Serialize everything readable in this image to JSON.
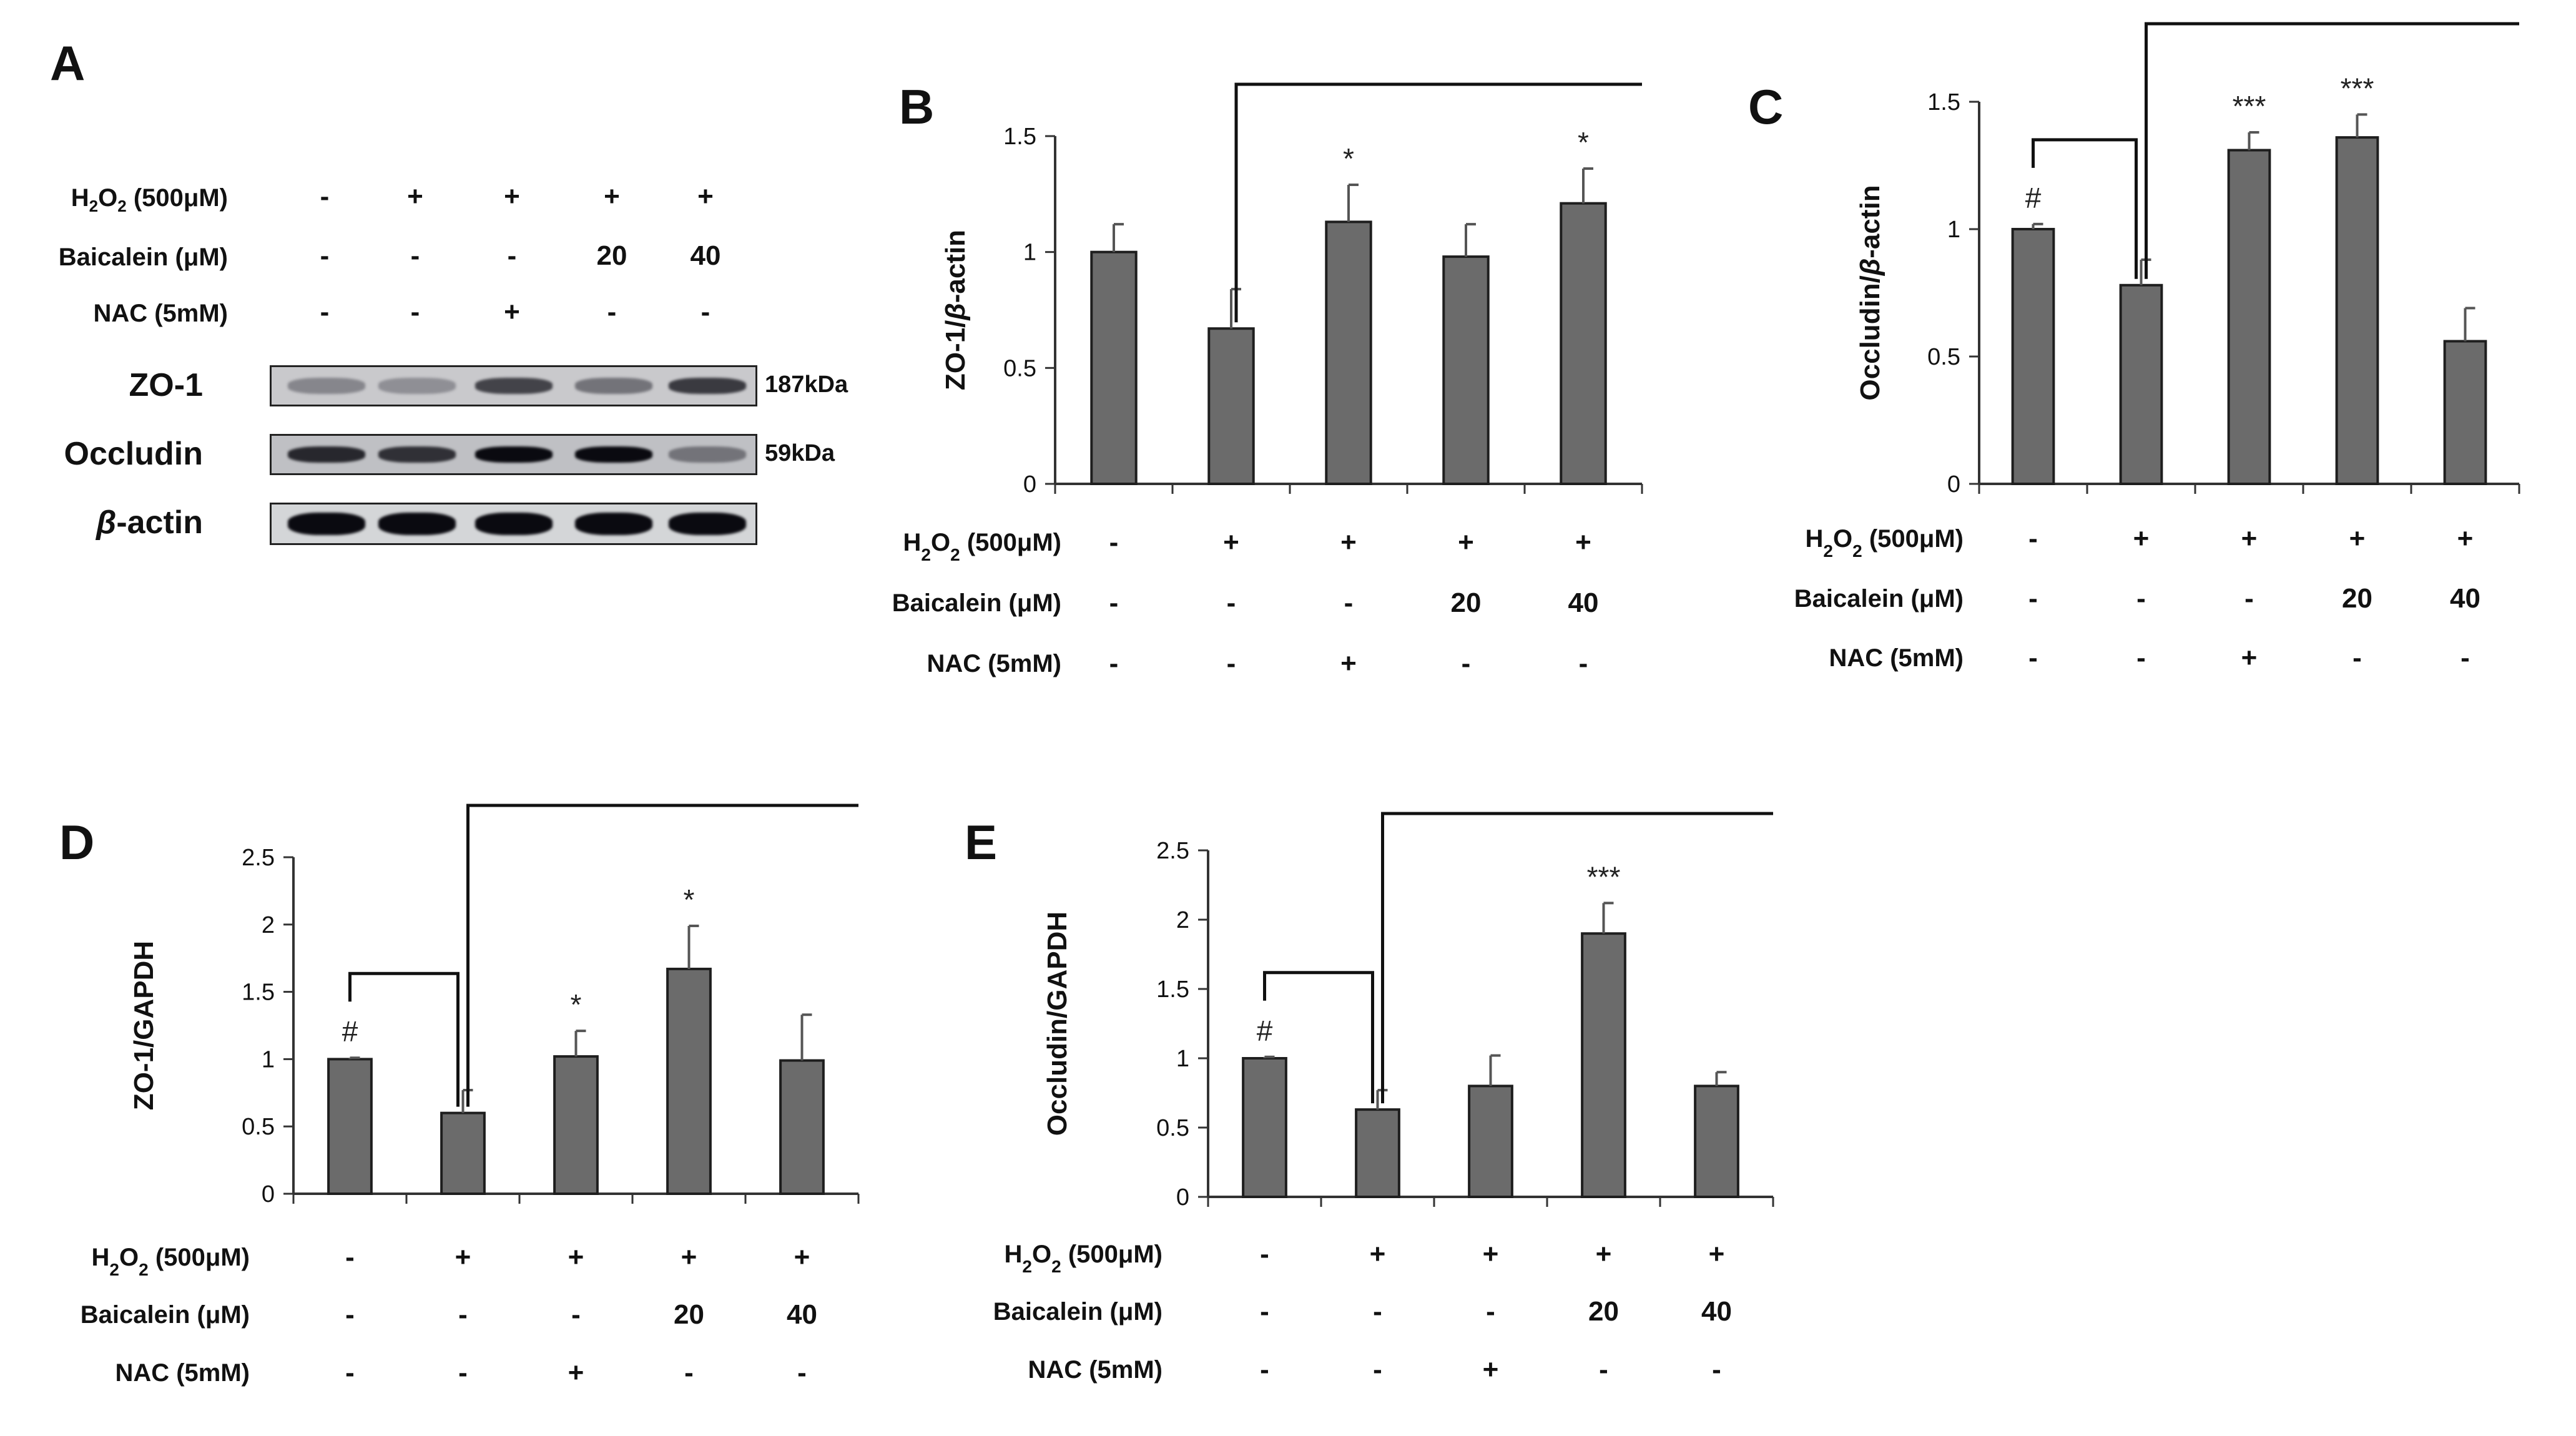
{
  "colors": {
    "bar": "#6b6b6b",
    "axis": "#333333",
    "text": "#111111"
  },
  "panel_a": {
    "label": "A",
    "treatment_rows": [
      {
        "label_html": "H<sub>2</sub>O<sub>2</sub> (500μM)",
        "values": [
          "-",
          "+",
          "+",
          "+",
          "+"
        ]
      },
      {
        "label_html": "Baicalein (μM)",
        "values": [
          "-",
          "-",
          "-",
          "20",
          "40"
        ]
      },
      {
        "label_html": "NAC (5mM)",
        "values": [
          "-",
          "-",
          "+",
          "-",
          "-"
        ]
      }
    ],
    "blots": [
      {
        "name": "ZO-1",
        "beta": false,
        "kda": "187kDa"
      },
      {
        "name": "Occludin",
        "beta": false,
        "kda": "59kDa"
      },
      {
        "name": "-actin",
        "beta": true,
        "kda": ""
      }
    ]
  },
  "chart_data": [
    {
      "panel": "B",
      "type": "bar",
      "title": "",
      "ylabel_html": "ZO-1/<tspan font-style=\"italic\">β</tspan>-actin",
      "ylim": [
        0,
        1.5
      ],
      "yticks": [
        0,
        0.5,
        1,
        1.5
      ],
      "ytick_labels": [
        "0",
        "0.5",
        "1",
        "1.5"
      ],
      "values": [
        1.0,
        0.67,
        1.13,
        0.98,
        1.21
      ],
      "errors": [
        0.12,
        0.17,
        0.16,
        0.14,
        0.15
      ],
      "annotations": [
        "",
        "",
        "*",
        "",
        "*"
      ],
      "bracket_pairs": [
        [
          1,
          4
        ]
      ],
      "treatment_rows": [
        {
          "label_html": "H<tspan baseline-shift=\"sub\" font-size=\"70%\">2</tspan>O<tspan baseline-shift=\"sub\" font-size=\"70%\">2</tspan> (500μM)",
          "values": [
            "-",
            "+",
            "+",
            "+",
            "+"
          ]
        },
        {
          "label_html": "Baicalein (μM)",
          "values": [
            "-",
            "-",
            "-",
            "20",
            "40"
          ]
        },
        {
          "label_html": "NAC (5mM)",
          "values": [
            "-",
            "-",
            "+",
            "-",
            "-"
          ]
        }
      ]
    },
    {
      "panel": "C",
      "type": "bar",
      "title": "",
      "ylabel_html": "Occludin/<tspan font-style=\"italic\">β</tspan>-actin",
      "ylim": [
        0,
        1.5
      ],
      "yticks": [
        0,
        0.5,
        1,
        1.5
      ],
      "ytick_labels": [
        "0",
        "0.5",
        "1",
        "1.5"
      ],
      "values": [
        1.0,
        0.78,
        1.31,
        1.36,
        0.56
      ],
      "errors": [
        0.02,
        0.1,
        0.07,
        0.09,
        0.13
      ],
      "annotations": [
        "#",
        "",
        "***",
        "***",
        ""
      ],
      "bracket_pairs": [
        [
          0,
          1
        ],
        [
          1,
          4
        ]
      ],
      "treatment_rows": [
        {
          "label_html": "H<tspan baseline-shift=\"sub\" font-size=\"70%\">2</tspan>O<tspan baseline-shift=\"sub\" font-size=\"70%\">2</tspan> (500μM)",
          "values": [
            "-",
            "+",
            "+",
            "+",
            "+"
          ]
        },
        {
          "label_html": "Baicalein (μM)",
          "values": [
            "-",
            "-",
            "-",
            "20",
            "40"
          ]
        },
        {
          "label_html": "NAC (5mM)",
          "values": [
            "-",
            "-",
            "+",
            "-",
            "-"
          ]
        }
      ]
    },
    {
      "panel": "D",
      "type": "bar",
      "title": "",
      "ylabel_html": "ZO-1/GAPDH",
      "ylim": [
        0,
        2.5
      ],
      "yticks": [
        0,
        0.5,
        1,
        1.5,
        2,
        2.5
      ],
      "ytick_labels": [
        "0",
        "0.5",
        "1",
        "1.5",
        "2",
        "2.5"
      ],
      "values": [
        1.0,
        0.6,
        1.02,
        1.67,
        0.99
      ],
      "errors": [
        0.01,
        0.17,
        0.19,
        0.32,
        0.34
      ],
      "annotations": [
        "#",
        "",
        "*",
        "*",
        ""
      ],
      "bracket_pairs": [
        [
          0,
          1
        ],
        [
          1,
          4
        ]
      ],
      "treatment_rows": [
        {
          "label_html": "H<tspan baseline-shift=\"sub\" font-size=\"70%\">2</tspan>O<tspan baseline-shift=\"sub\" font-size=\"70%\">2</tspan> (500μM)",
          "values": [
            "-",
            "+",
            "+",
            "+",
            "+"
          ]
        },
        {
          "label_html": "Baicalein (μM)",
          "values": [
            "-",
            "-",
            "-",
            "20",
            "40"
          ]
        },
        {
          "label_html": "NAC (5mM)",
          "values": [
            "-",
            "-",
            "+",
            "-",
            "-"
          ]
        }
      ]
    },
    {
      "panel": "E",
      "type": "bar",
      "title": "",
      "ylabel_html": "Occludin/GAPDH",
      "ylim": [
        0,
        2.5
      ],
      "yticks": [
        0,
        0.5,
        1,
        1.5,
        2,
        2.5
      ],
      "ytick_labels": [
        "0",
        "0.5",
        "1",
        "1.5",
        "2",
        "2.5"
      ],
      "values": [
        1.0,
        0.63,
        0.8,
        1.9,
        0.8
      ],
      "errors": [
        0.01,
        0.14,
        0.22,
        0.22,
        0.1
      ],
      "annotations": [
        "#",
        "",
        "",
        "***",
        ""
      ],
      "bracket_pairs": [
        [
          0,
          1
        ],
        [
          1,
          4
        ]
      ],
      "treatment_rows": [
        {
          "label_html": "H<tspan baseline-shift=\"sub\" font-size=\"70%\">2</tspan>O<tspan baseline-shift=\"sub\" font-size=\"70%\">2</tspan> (500μM)",
          "values": [
            "-",
            "+",
            "+",
            "+",
            "+"
          ]
        },
        {
          "label_html": "Baicalein (μM)",
          "values": [
            "-",
            "-",
            "-",
            "20",
            "40"
          ]
        },
        {
          "label_html": "NAC (5mM)",
          "values": [
            "-",
            "-",
            "+",
            "-",
            "-"
          ]
        }
      ]
    }
  ]
}
